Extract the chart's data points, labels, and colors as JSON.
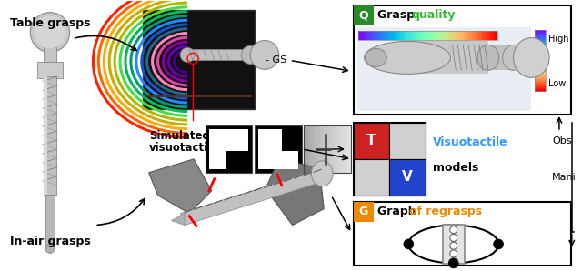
{
  "fig_width": 6.4,
  "fig_height": 2.98,
  "bg_color": "#ffffff",
  "panel_Q_label": "Q",
  "panel_Q_label_color": "#ffffff",
  "panel_Q_bg": "#2a8a2a",
  "panel_Q_title": "Grasp ",
  "panel_Q_title2": "quality",
  "panel_Q_title2_color": "#33bb33",
  "panel_T_label": "T",
  "panel_T_label_color": "#ffffff",
  "panel_T_bg": "#cc2222",
  "panel_V_label": "V",
  "panel_V_label_color": "#ffffff",
  "panel_V_bg": "#2244cc",
  "panel_TV_title": "Visuotactile",
  "panel_TV_title_color": "#3399ff",
  "panel_TV_subtitle": "models",
  "panel_G_label": "G",
  "panel_G_label_color": "#ffffff",
  "panel_G_bg": "#ee8800",
  "panel_G_title": "Graph ",
  "panel_G_title2": "of regrasps",
  "obs_label": "Obs",
  "mani_label": "Mani",
  "table_grasps_label": "Table grasps",
  "in_air_label": "In-air grasps",
  "sim_vt_label1": "Simulated",
  "sim_vt_label2": "visuotactile",
  "gs_label": "- GS",
  "high_label": "High",
  "low_label": "Low"
}
